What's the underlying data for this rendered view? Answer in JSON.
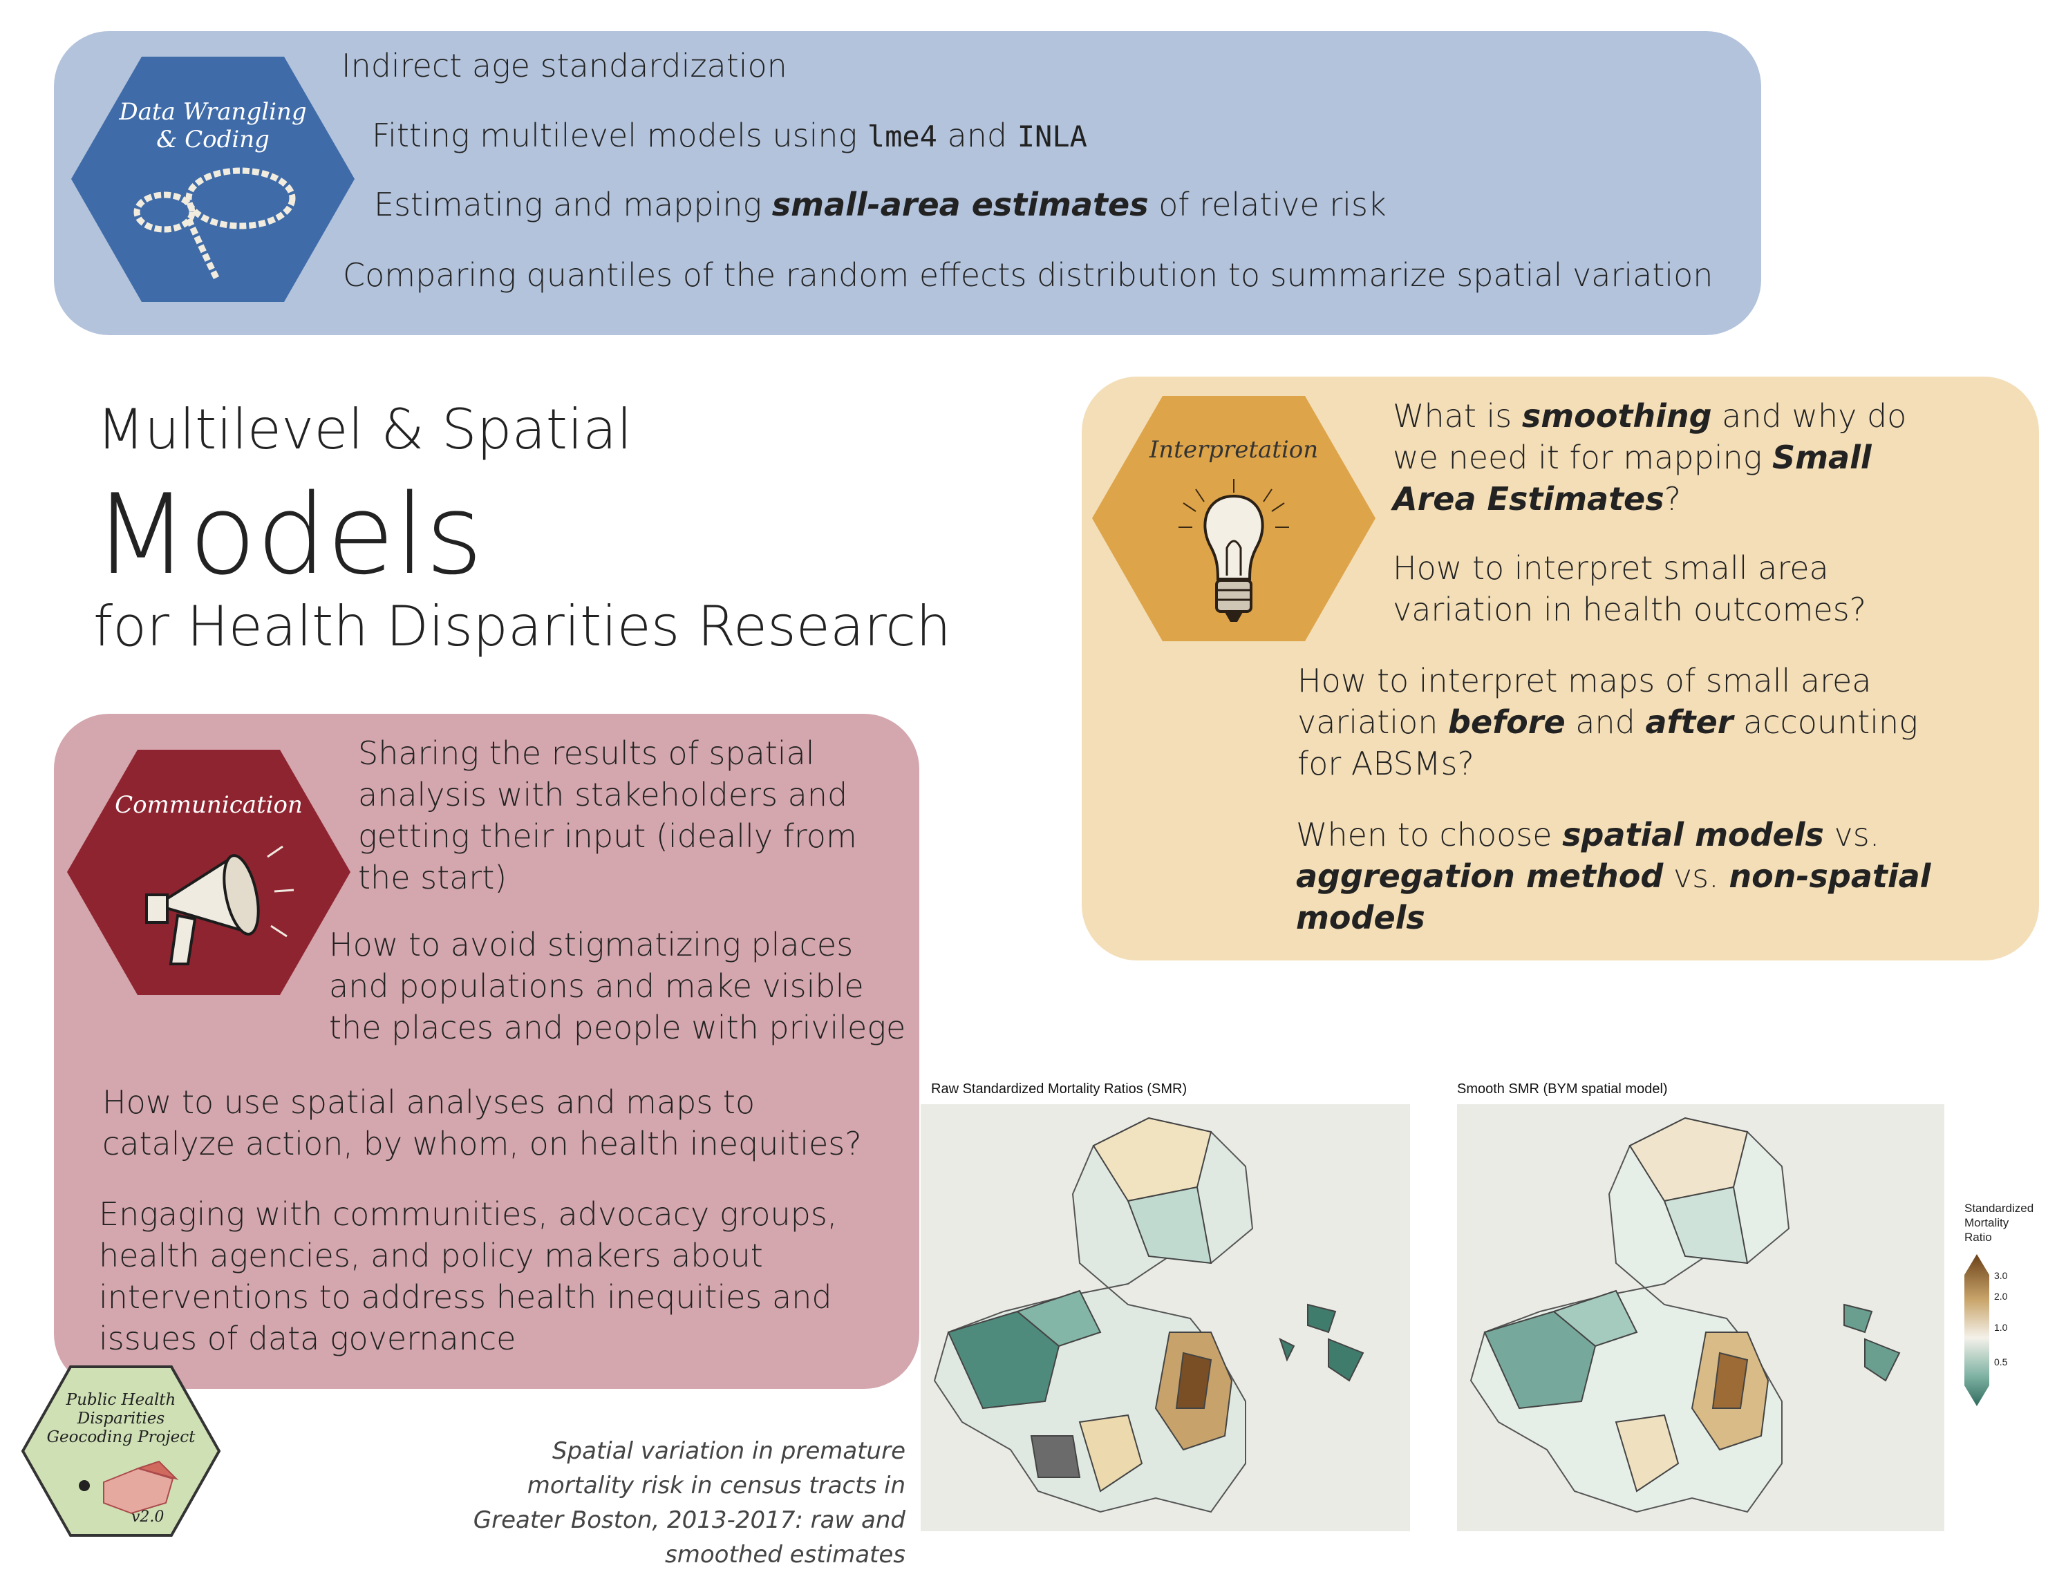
{
  "data_panel": {
    "hex_label": "Data Wrangling & Coding",
    "hex_color": "#3f6ba8",
    "items": [
      {
        "pre": "Indirect age standardization"
      },
      {
        "pre": "Fitting multilevel models using ",
        "code1": "lme4",
        "mid": " and ",
        "code2": "INLA"
      },
      {
        "pre": "Estimating and mapping ",
        "em": "small-area estimates",
        "post": " of relative risk"
      },
      {
        "pre": "Comparing quantiles of the random effects distribution to summarize spatial variation"
      }
    ]
  },
  "title": {
    "line1": "Multilevel & Spatial",
    "line2": "Models",
    "line3": "for Health Disparities Research"
  },
  "interp_panel": {
    "hex_label": "Interpretation",
    "hex_color": "#dea449",
    "q1": {
      "a": "What is ",
      "b": "smoothing",
      "c": " and why do we need it for mapping ",
      "d": "Small Area Estimates",
      "e": "?"
    },
    "q2": "How to interpret small area variation in health outcomes?",
    "q3": {
      "a": "How to interpret maps of small area variation ",
      "b": "before",
      "c": " and ",
      "d": "after",
      "e": " accounting for ABSMs?"
    },
    "q4": {
      "a": "When to choose ",
      "b": "spatial models",
      "c": " vs. ",
      "d": "aggregation method",
      "e": " vs. ",
      "f": "non-spatial models"
    }
  },
  "comm_panel": {
    "hex_label": "Communication",
    "hex_color": "#8e2430",
    "items": [
      "Sharing the results of spatial analysis with stakeholders and getting their input (ideally from the start)",
      "How to avoid stigmatizing places and populations and make visible the places and people with privilege",
      "How to use spatial analyses and maps to catalyze action, by whom, on health inequities?",
      "Engaging with communities, advocacy groups, health agencies, and policy makers about interventions to address health inequities and issues of data governance"
    ]
  },
  "maps": {
    "left_title": "Raw Standardized Mortality Ratios (SMR)",
    "right_title": "Smooth SMR (BYM spatial model)",
    "legend_title": [
      "Standardized",
      "Mortality",
      "Ratio"
    ],
    "legend_ticks": [
      "3.0",
      "2.0",
      "1.0",
      "0.5"
    ]
  },
  "caption": "Spatial variation in premature mortality risk in census tracts in Greater Boston, 2013-2017: raw and smoothed estimates",
  "logo": {
    "line1": "Public Health",
    "line2": "Disparities",
    "line3": "Geocoding Project",
    "version": "v2.0"
  }
}
